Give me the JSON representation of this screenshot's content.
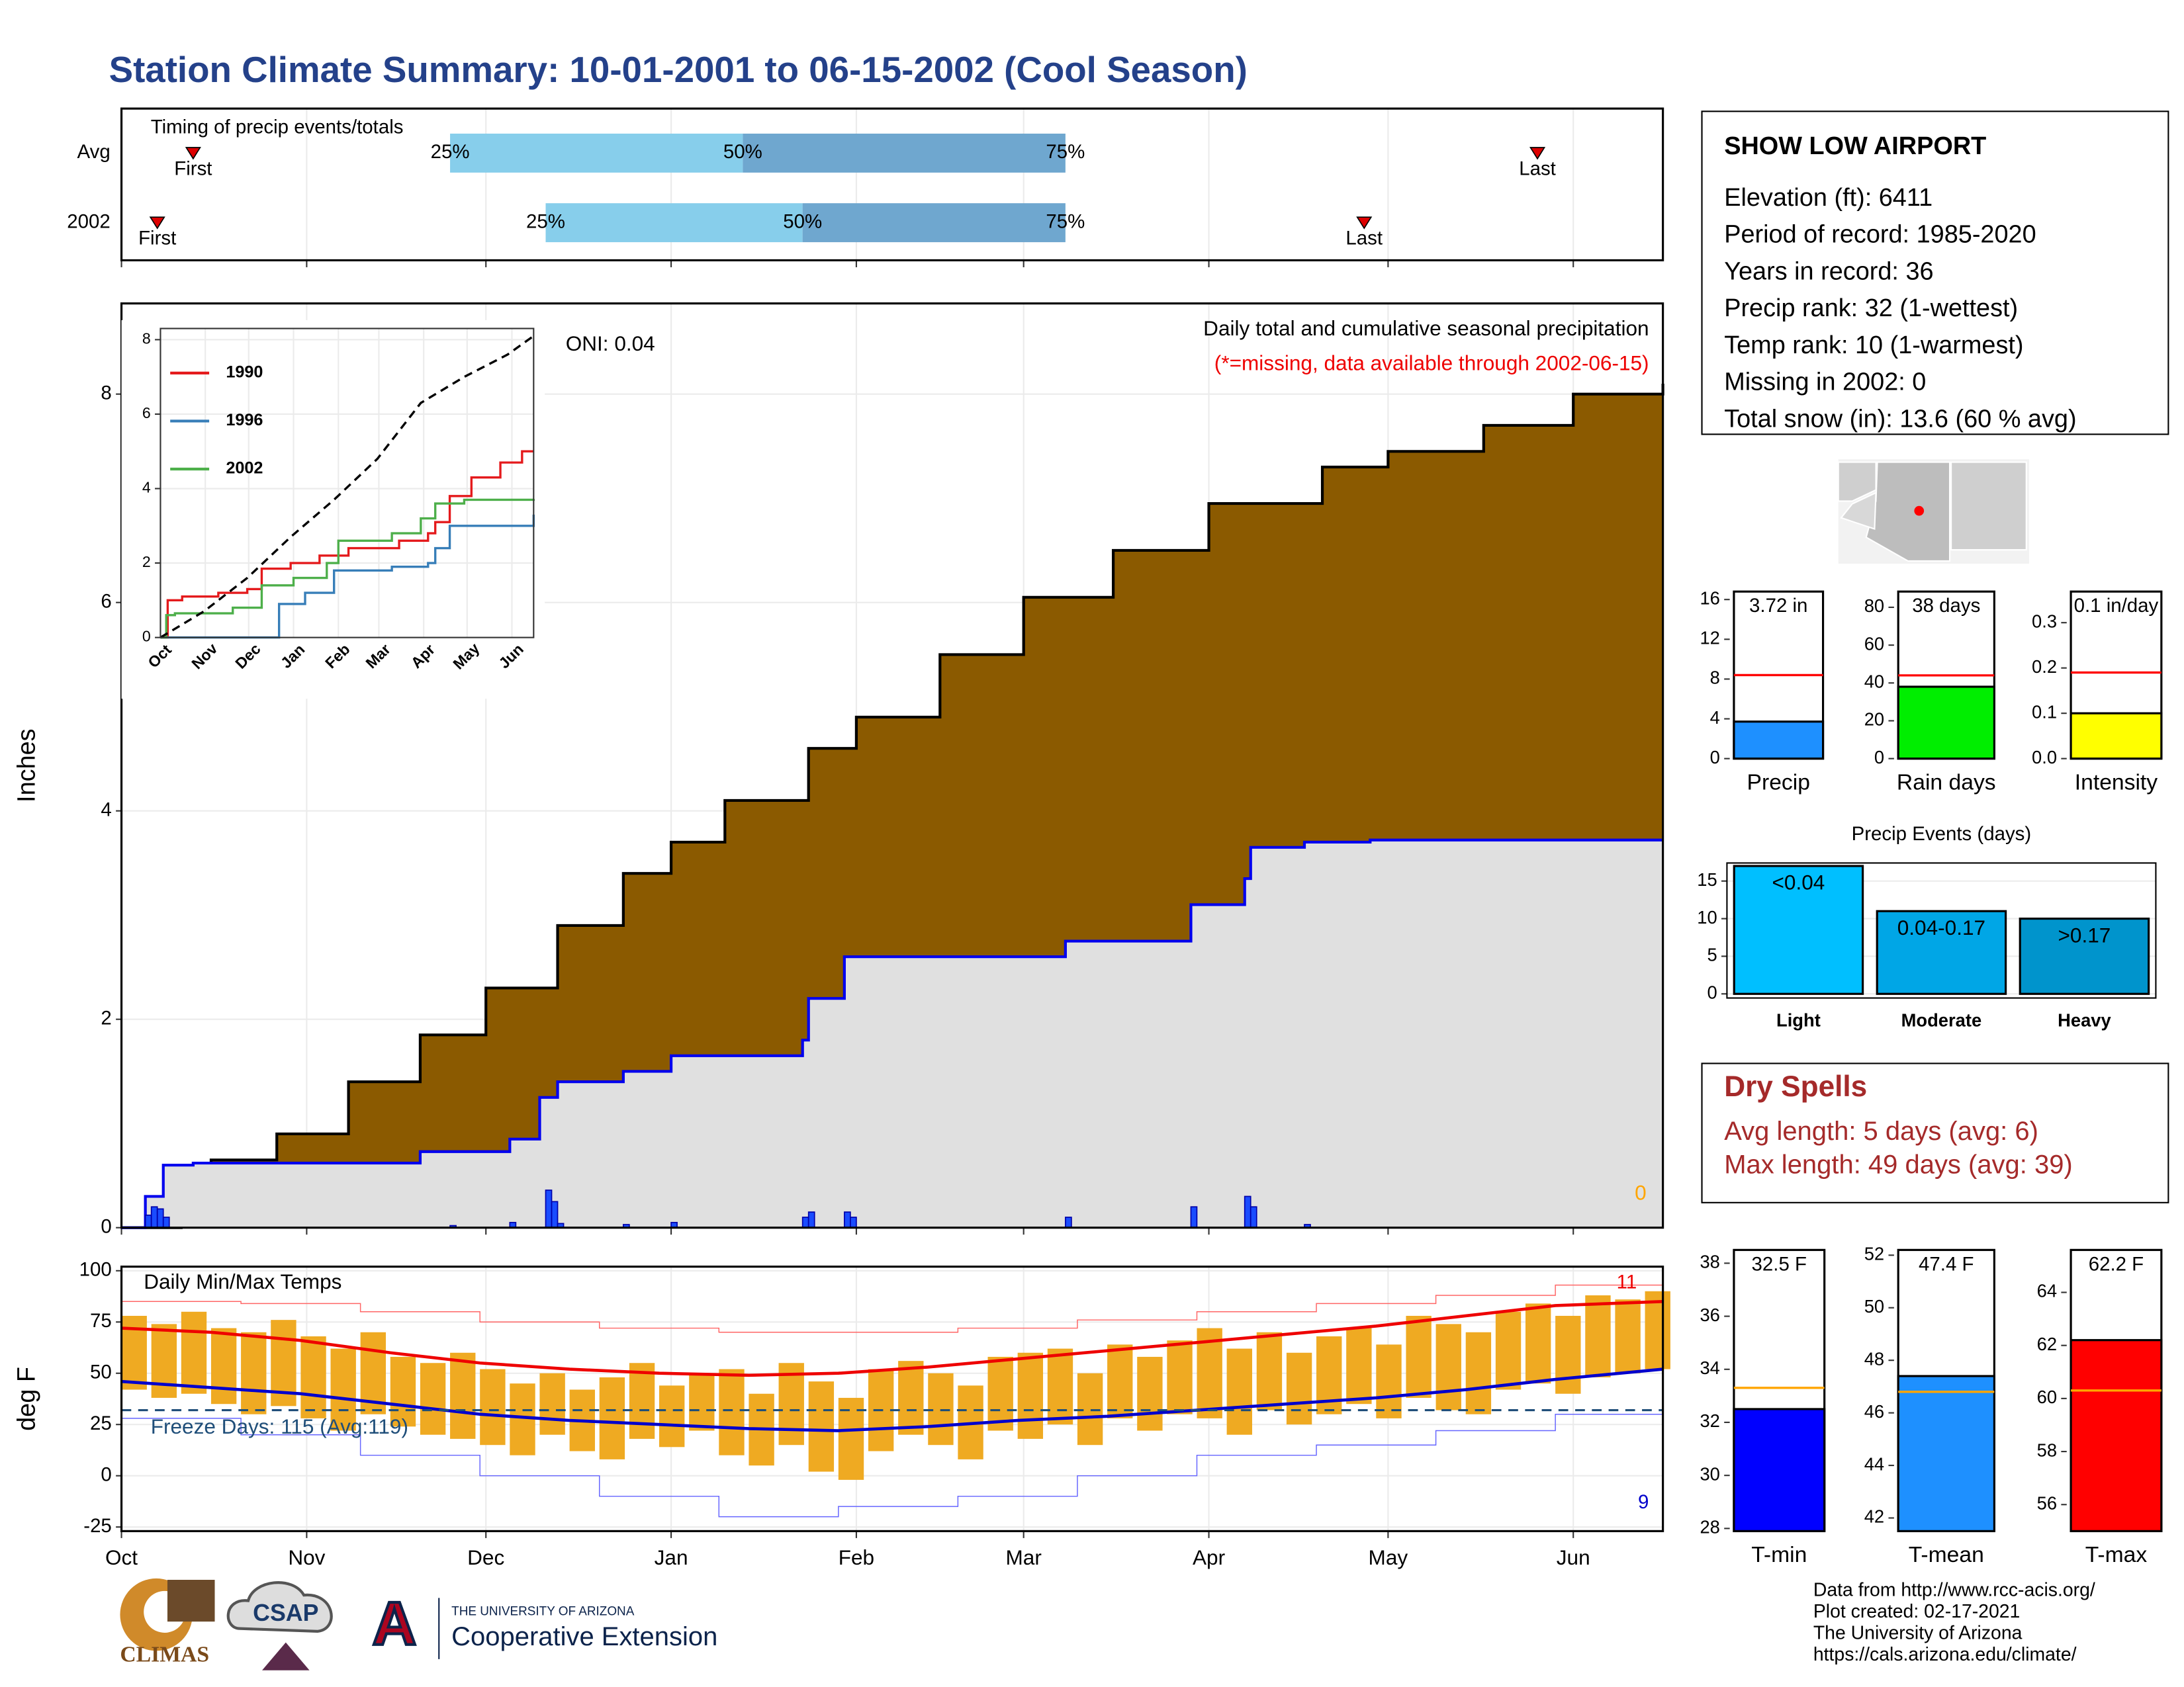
{
  "title": "Station Climate Summary: 10-01-2001 to 06-15-2002 (Cool Season)",
  "chart_data": [
    {
      "type": "timing",
      "title": "Timing of precip events/totals",
      "xlim": [
        0,
        258
      ],
      "rows": [
        {
          "name": "Avg",
          "first": 12,
          "p25": 55,
          "p50": 104,
          "p75": 158,
          "last": 237
        },
        {
          "name": "2002",
          "first": 6,
          "p25": 71,
          "p50": 114,
          "p75": 158,
          "last": 208
        }
      ],
      "labels": {
        "first": "First",
        "last": "Last",
        "p25": "25%",
        "p50": "50%",
        "p75": "75%"
      },
      "colors": {
        "low": "#87ceeb",
        "high": "#6fa7cf",
        "marker": "#dd0000"
      }
    },
    {
      "type": "cumulative",
      "y_label": "Inches",
      "xlim": [
        0,
        258
      ],
      "ylim": [
        0,
        8.87
      ],
      "yticks": [
        0,
        2,
        4,
        6,
        8
      ],
      "grid": true,
      "annotations": [
        "ONI: 0.04",
        "Daily total and cumulative seasonal precipitation",
        "(*=missing, data available through 2002-06-15)",
        "0"
      ],
      "average": {
        "color": "#8b5a00",
        "x": [
          0,
          10,
          15,
          26,
          38,
          50,
          61,
          73,
          84,
          92,
          101,
          115,
          123,
          137,
          151,
          166,
          182,
          201,
          212,
          228,
          243,
          258
        ],
        "values": [
          0,
          0.5,
          0.65,
          0.9,
          1.4,
          1.85,
          2.3,
          2.9,
          3.4,
          3.7,
          4.1,
          4.6,
          4.9,
          5.5,
          6.05,
          6.5,
          6.95,
          7.3,
          7.45,
          7.7,
          8.0,
          8.1
        ]
      },
      "season": {
        "color": "#0000ee",
        "fill": "#e0e0e0",
        "x": [
          0,
          4,
          7,
          12,
          50,
          65,
          70,
          73,
          84,
          92,
          114,
          115,
          121,
          158,
          179,
          188,
          189,
          198,
          209,
          258
        ],
        "values": [
          0,
          0.3,
          0.6,
          0.62,
          0.73,
          0.85,
          1.25,
          1.4,
          1.5,
          1.65,
          1.8,
          2.2,
          2.6,
          2.75,
          3.1,
          3.35,
          3.65,
          3.7,
          3.72,
          3.72
        ]
      },
      "daily": {
        "color": "#1a4cff",
        "x": [
          4,
          5,
          6,
          7,
          55,
          65,
          71,
          72,
          73,
          84,
          92,
          114,
          115,
          121,
          122,
          158,
          179,
          188,
          189,
          198
        ],
        "values": [
          0.12,
          0.2,
          0.18,
          0.1,
          0.02,
          0.05,
          0.36,
          0.25,
          0.04,
          0.03,
          0.05,
          0.1,
          0.15,
          0.15,
          0.1,
          0.1,
          0.2,
          0.3,
          0.2,
          0.03
        ]
      }
    },
    {
      "type": "line",
      "xlim": [
        0,
        258
      ],
      "ylim": [
        0,
        8.3
      ],
      "yticks": [
        0,
        2,
        4,
        6,
        8
      ],
      "xticks": [
        {
          "value": 0,
          "label": "Oct"
        },
        {
          "value": 31,
          "label": "Nov"
        },
        {
          "value": 61,
          "label": "Dec"
        },
        {
          "value": 92,
          "label": "Jan"
        },
        {
          "value": 123,
          "label": "Feb"
        },
        {
          "value": 151,
          "label": "Mar"
        },
        {
          "value": 182,
          "label": "Apr"
        },
        {
          "value": 212,
          "label": "May"
        },
        {
          "value": 243,
          "label": "Jun"
        }
      ],
      "series": [
        {
          "name": "1990",
          "color": "#e41a1c",
          "x": [
            0,
            5,
            15,
            40,
            60,
            70,
            90,
            110,
            130,
            165,
            185,
            190,
            200,
            215,
            235,
            250,
            258
          ],
          "values": [
            0,
            1.0,
            1.1,
            1.2,
            1.3,
            1.85,
            2.0,
            2.2,
            2.4,
            2.6,
            2.8,
            3.1,
            3.8,
            4.3,
            4.7,
            5.0,
            5.0
          ]
        },
        {
          "name": "1996",
          "color": "#377eb8",
          "x": [
            0,
            80,
            82,
            100,
            120,
            160,
            185,
            190,
            200,
            258
          ],
          "values": [
            0,
            0,
            0.9,
            1.2,
            1.8,
            1.9,
            2.0,
            2.4,
            3.0,
            3.3
          ]
        },
        {
          "name": "2002",
          "color": "#4daf4a",
          "x": [
            0,
            4,
            10,
            50,
            70,
            92,
            115,
            123,
            160,
            180,
            190,
            210,
            258
          ],
          "values": [
            0,
            0.6,
            0.65,
            0.8,
            1.4,
            1.6,
            2.0,
            2.6,
            2.8,
            3.2,
            3.6,
            3.7,
            3.72
          ]
        },
        {
          "color": "#000000",
          "dashed": true,
          "x": [
            0,
            30,
            60,
            90,
            120,
            150,
            180,
            210,
            240,
            258
          ],
          "values": [
            0,
            0.7,
            1.6,
            2.7,
            3.7,
            4.8,
            6.3,
            7.0,
            7.6,
            8.1
          ]
        }
      ]
    },
    {
      "type": "temperature",
      "title": "Daily Min/Max Temps",
      "y_label": "deg F",
      "xlim": [
        0,
        258
      ],
      "ylim": [
        -27,
        102
      ],
      "yticks": [
        -25,
        0,
        25,
        50,
        75,
        100
      ],
      "grid": true,
      "xticks": [
        {
          "value": 0,
          "label": "Oct"
        },
        {
          "value": 31,
          "label": "Nov"
        },
        {
          "value": 61,
          "label": "Dec"
        },
        {
          "value": 92,
          "label": "Jan"
        },
        {
          "value": 123,
          "label": "Feb"
        },
        {
          "value": 151,
          "label": "Mar"
        },
        {
          "value": 182,
          "label": "Apr"
        },
        {
          "value": 212,
          "label": "May"
        },
        {
          "value": 243,
          "label": "Jun"
        }
      ],
      "annotations": [
        "Freeze Days: 115 (Avg:119)",
        "11",
        "9"
      ],
      "freeze_line": 32,
      "bar_color": "#efaa22",
      "x": [
        0,
        5,
        10,
        15,
        20,
        25,
        30,
        35,
        40,
        45,
        50,
        55,
        60,
        65,
        70,
        75,
        80,
        85,
        90,
        95,
        100,
        105,
        110,
        115,
        120,
        125,
        130,
        135,
        140,
        145,
        150,
        155,
        160,
        165,
        170,
        175,
        180,
        185,
        190,
        195,
        200,
        205,
        210,
        215,
        220,
        225,
        230,
        235,
        240,
        245,
        250,
        255
      ],
      "tmax": [
        78,
        74,
        80,
        72,
        70,
        76,
        68,
        62,
        70,
        58,
        55,
        60,
        52,
        45,
        50,
        42,
        48,
        55,
        44,
        50,
        52,
        40,
        55,
        46,
        38,
        52,
        56,
        50,
        44,
        58,
        60,
        62,
        50,
        64,
        58,
        66,
        72,
        62,
        70,
        60,
        68,
        72,
        64,
        78,
        74,
        70,
        80,
        84,
        78,
        88,
        86,
        90
      ],
      "tmin": [
        42,
        38,
        40,
        35,
        30,
        34,
        28,
        22,
        30,
        24,
        20,
        18,
        15,
        10,
        20,
        12,
        8,
        18,
        14,
        22,
        10,
        5,
        15,
        2,
        -2,
        12,
        20,
        15,
        8,
        22,
        18,
        25,
        15,
        28,
        22,
        30,
        28,
        20,
        32,
        25,
        30,
        35,
        28,
        38,
        32,
        30,
        42,
        45,
        40,
        48,
        50,
        52
      ],
      "normal_x": [
        0,
        15,
        30,
        45,
        60,
        75,
        90,
        105,
        120,
        135,
        150,
        165,
        180,
        195,
        210,
        225,
        240,
        258
      ],
      "normal_max": [
        72,
        70,
        66,
        60,
        55,
        52,
        50,
        49,
        50,
        53,
        57,
        61,
        65,
        69,
        73,
        78,
        83,
        85
      ],
      "normal_min": [
        46,
        43,
        40,
        35,
        30,
        27,
        25,
        23,
        22,
        24,
        27,
        29,
        32,
        35,
        38,
        42,
        47,
        52
      ],
      "record_x": [
        0,
        20,
        40,
        60,
        80,
        100,
        120,
        140,
        160,
        180,
        200,
        220,
        240,
        258
      ],
      "record_max": [
        85,
        84,
        80,
        75,
        72,
        70,
        70,
        72,
        76,
        80,
        84,
        88,
        93,
        95
      ],
      "record_min": [
        28,
        20,
        10,
        0,
        -10,
        -20,
        -15,
        -10,
        0,
        10,
        15,
        22,
        30,
        38
      ]
    },
    {
      "type": "bar",
      "categories": [
        "Precip"
      ],
      "values": [
        3.72
      ],
      "value_labels": [
        "3.72 in"
      ],
      "average": 8.4,
      "color": "#1e90ff",
      "average_color": "#ff0000",
      "ylim": [
        0,
        17.5
      ],
      "yticks": [
        0,
        4,
        8,
        12,
        16
      ]
    },
    {
      "type": "bar",
      "categories": [
        "Rain days"
      ],
      "values": [
        38
      ],
      "value_labels": [
        "38 days"
      ],
      "average": 44,
      "color": "#00ee00",
      "average_color": "#ff0000",
      "ylim": [
        0,
        92
      ],
      "yticks": [
        0,
        20,
        40,
        60,
        80
      ]
    },
    {
      "type": "bar",
      "categories": [
        "Intensity"
      ],
      "values": [
        0.1
      ],
      "value_labels": [
        "0.1 in/day"
      ],
      "average": 0.19,
      "color": "#ffff00",
      "average_color": "#ff0000",
      "ylim": [
        0,
        0.384
      ],
      "yticks": [
        {
          "value": 0,
          "label": "0.0"
        },
        0.1,
        0.2,
        0.3
      ]
    },
    {
      "type": "bar",
      "title": "Precip Events (days)",
      "categories": [
        "Light",
        "Moderate",
        "Heavy"
      ],
      "bin_labels": [
        "<0.04",
        "0.04-0.17",
        ">0.17"
      ],
      "values": [
        17,
        11,
        10
      ],
      "colors": [
        "#00bfff",
        "#00a6e6",
        "#0094cc"
      ],
      "ylim": [
        -0.55,
        17.4
      ],
      "yticks": [
        0,
        5,
        10,
        15
      ],
      "grid": true
    },
    {
      "type": "bar",
      "categories": [
        "T-min"
      ],
      "values": [
        32.5
      ],
      "value_labels": [
        "32.5 F"
      ],
      "average": 33.3,
      "color": "#0000ff",
      "average_color": "#ffa500",
      "ylim": [
        27.9,
        38.5
      ],
      "yticks": [
        28,
        30,
        32,
        34,
        36,
        38
      ]
    },
    {
      "type": "bar",
      "categories": [
        "T-mean"
      ],
      "values": [
        47.4
      ],
      "value_labels": [
        "47.4 F"
      ],
      "average": 46.8,
      "color": "#1e90ff",
      "average_color": "#ffa500",
      "ylim": [
        41.5,
        52.2
      ],
      "yticks": [
        42,
        44,
        46,
        48,
        50,
        52
      ]
    },
    {
      "type": "bar",
      "categories": [
        "T-max"
      ],
      "values": [
        62.2
      ],
      "value_labels": [
        "62.2 F"
      ],
      "average": 60.3,
      "color": "#ff0000",
      "average_color": "#ffa500",
      "ylim": [
        55,
        65.6
      ],
      "yticks": [
        56,
        58,
        60,
        62,
        64
      ]
    }
  ],
  "station": {
    "name": "SHOW LOW AIRPORT",
    "lines": [
      "Elevation (ft): 6411",
      "Period of record: 1985-2020",
      "Years in record: 36",
      "Precip rank: 32 (1-wettest)",
      "Temp rank: 10 (1-warmest)",
      "Missing in 2002: 0",
      "Total snow (in): 13.6 (60 % avg)"
    ]
  },
  "dry_spells": {
    "title": "Dry Spells",
    "lines": [
      "Avg length: 5 days (avg: 6)",
      "Max length: 49 days (avg: 39)"
    ]
  },
  "footer": [
    "Data from http://www.rcc-acis.org/",
    "Plot created: 02-17-2021",
    "The University of Arizona",
    "https://cals.arizona.edu/climate/"
  ],
  "logos": {
    "climas": "CLIMAS",
    "csap": "CSAP",
    "ua_letter": "A",
    "ua_line": "THE UNIVERSITY OF ARIZONA",
    "ua_name": "Cooperative Extension"
  }
}
